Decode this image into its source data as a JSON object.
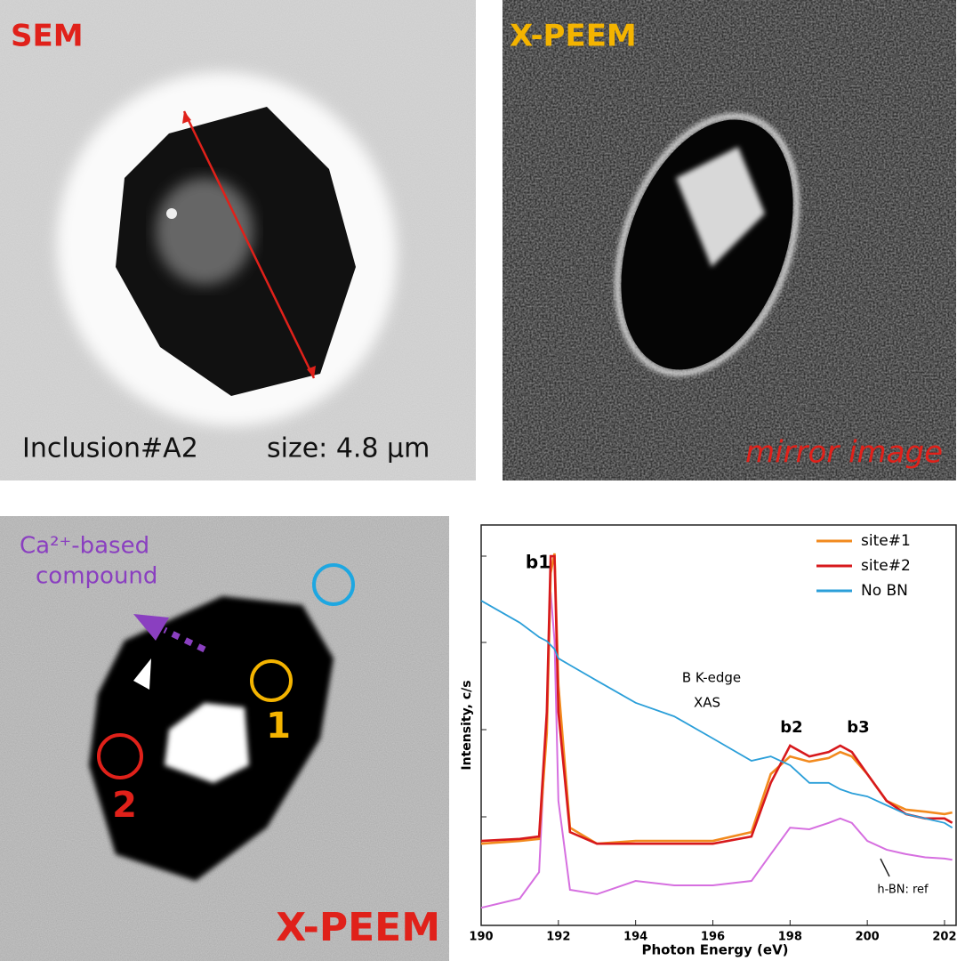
{
  "panels": {
    "sem": {
      "label": "SEM",
      "inclusion": "Inclusion#A2",
      "size": "size: 4.8 µm"
    },
    "peem_top": {
      "label": "X-PEEM",
      "note": "mirror image"
    },
    "peem_bottom": {
      "label": "X-PEEM",
      "compound": [
        "Ca²⁺-based",
        "compound"
      ],
      "sites": [
        "1",
        "2"
      ]
    }
  },
  "chart_data": {
    "type": "line",
    "x_label": "Photon Energy (eV)",
    "y_label": "Intensity, c/s",
    "xlim": [
      190,
      202.3
    ],
    "xticks": [
      190,
      192,
      194,
      196,
      198,
      200,
      202
    ],
    "ylim": [
      0,
      100
    ],
    "legend": "upper-right",
    "x": [
      190,
      191,
      191.5,
      191.7,
      191.8,
      191.9,
      192,
      192.3,
      193,
      194,
      195,
      196,
      197,
      197.5,
      198,
      198.5,
      199,
      199.3,
      199.6,
      200,
      200.5,
      201,
      201.5,
      202,
      202.2
    ],
    "series": [
      {
        "name": "site#1",
        "color": "#f28a1e",
        "values": [
          20.4,
          21.1,
          21.6,
          48,
          88,
          92.9,
          60,
          24.4,
          20.4,
          21.1,
          21.1,
          21.1,
          23.3,
          37.8,
          42.2,
          40.9,
          41.8,
          43.3,
          42.2,
          37.8,
          31.1,
          28.9,
          28.4,
          27.8,
          28.2
        ]
      },
      {
        "name": "site#2",
        "color": "#d7191c",
        "values": [
          21.1,
          21.6,
          22.2,
          53.3,
          92.2,
          92.2,
          53.3,
          23.3,
          20.4,
          20.4,
          20.4,
          20.4,
          22.2,
          35.6,
          44.9,
          42.2,
          43.3,
          44.9,
          43.3,
          37.8,
          31.1,
          27.8,
          26.7,
          26.7,
          25.6
        ]
      },
      {
        "name": "No BN",
        "color": "#2b9fd9",
        "values": [
          81.1,
          75.6,
          72,
          71,
          70,
          69,
          66.7,
          65,
          61.1,
          55.6,
          52.2,
          46.7,
          41.1,
          42.2,
          40,
          35.6,
          35.6,
          34,
          33,
          32.2,
          30,
          27.8,
          26.7,
          25.6,
          24.4
        ]
      }
    ],
    "reference_series": {
      "name": "h-BN: ref",
      "color": "#d66fe0",
      "values": [
        4.4,
        6.7,
        13.3,
        53.3,
        83.3,
        71.1,
        31.1,
        8.9,
        7.8,
        11.1,
        10,
        10,
        11.1,
        17.8,
        24.4,
        24,
        25.6,
        26.7,
        25.6,
        21.1,
        18.9,
        17.8,
        17,
        16.7,
        16.4
      ]
    },
    "annotations": [
      "b1",
      "b2",
      "b3",
      "B K-edge",
      "XAS"
    ]
  }
}
